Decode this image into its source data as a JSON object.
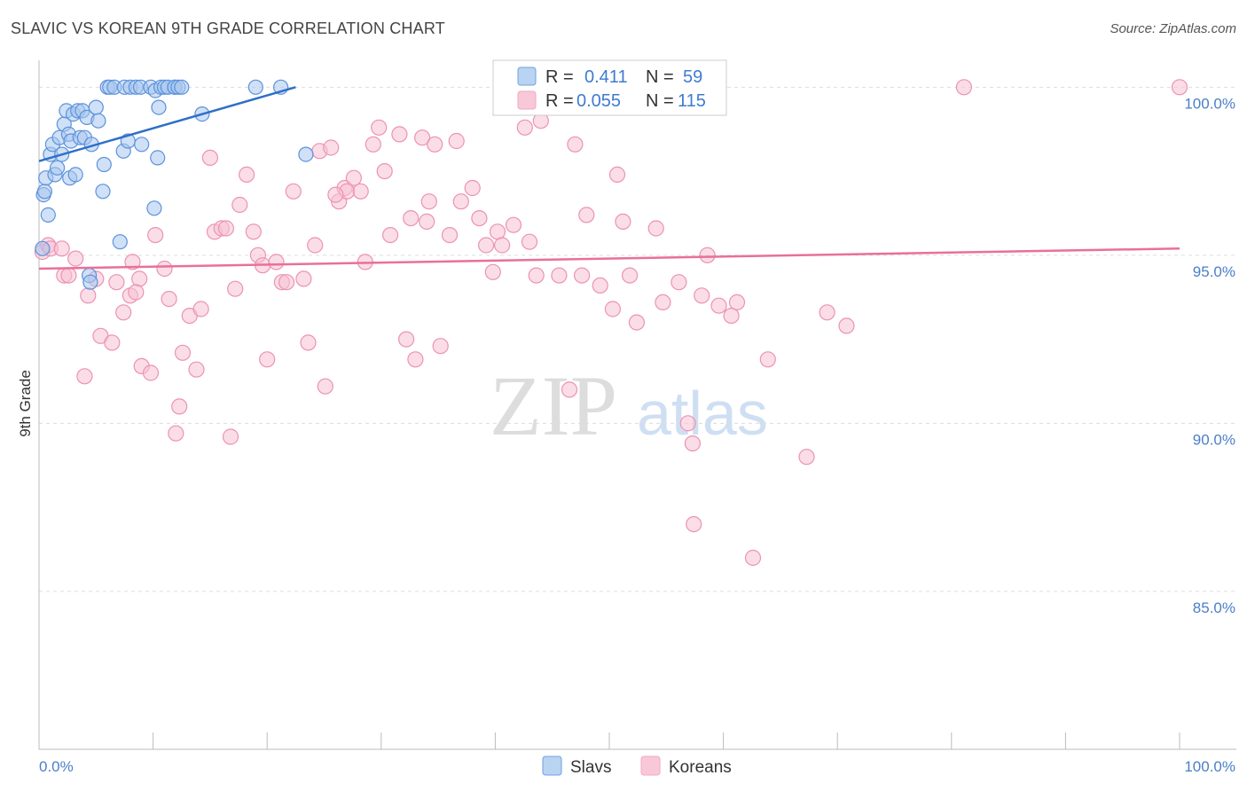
{
  "header": {
    "title": "SLAVIC VS KOREAN 9TH GRADE CORRELATION CHART",
    "source": "Source: ZipAtlas.com"
  },
  "watermark": {
    "zip": "ZIP",
    "atlas": "atlas"
  },
  "colors": {
    "slavs": "#6ea1e0",
    "slavs_line": "#2f6fc8",
    "koreans": "#f2a7bf",
    "koreans_line": "#e8709a",
    "axis_label": "#4a7fc8"
  },
  "legend": {
    "r_label": "R =",
    "n_label": "N =",
    "slavs": {
      "r": "0.411",
      "n": "59"
    },
    "koreans": {
      "r": "0.055",
      "n": "115"
    }
  },
  "bottom_legend": {
    "slavs": "Slavs",
    "koreans": "Koreans"
  },
  "chart_data": {
    "type": "scatter",
    "title": "SLAVIC VS KOREAN 9TH GRADE CORRELATION CHART",
    "xlabel": "",
    "ylabel": "9th Grade",
    "xlim": [
      0,
      100
    ],
    "ylim": [
      80.3,
      100.8
    ],
    "x_tick_labels": {
      "left": "0.0%",
      "right": "100.0%"
    },
    "y_ticks": [
      {
        "value": 100,
        "label": "100.0%"
      },
      {
        "value": 95,
        "label": "95.0%"
      },
      {
        "value": 90,
        "label": "90.0%"
      },
      {
        "value": 85,
        "label": "85.0%"
      }
    ],
    "series": [
      {
        "name": "Slavs",
        "trend": {
          "x0": 0,
          "y0": 97.8,
          "x1": 22.5,
          "y1": 100.0
        },
        "points": [
          [
            0.3,
            95.2
          ],
          [
            0.4,
            96.8
          ],
          [
            0.5,
            96.9
          ],
          [
            0.6,
            97.3
          ],
          [
            0.8,
            96.2
          ],
          [
            1.0,
            98.0
          ],
          [
            1.2,
            98.3
          ],
          [
            1.4,
            97.4
          ],
          [
            1.6,
            97.6
          ],
          [
            1.8,
            98.5
          ],
          [
            2.0,
            98.0
          ],
          [
            2.2,
            98.9
          ],
          [
            2.4,
            99.3
          ],
          [
            2.6,
            98.6
          ],
          [
            2.7,
            97.3
          ],
          [
            2.8,
            98.4
          ],
          [
            3.0,
            99.2
          ],
          [
            3.2,
            97.4
          ],
          [
            3.4,
            99.3
          ],
          [
            3.6,
            98.5
          ],
          [
            3.8,
            99.3
          ],
          [
            4.0,
            98.5
          ],
          [
            4.2,
            99.1
          ],
          [
            4.4,
            94.4
          ],
          [
            4.5,
            94.2
          ],
          [
            4.6,
            98.3
          ],
          [
            5.0,
            99.4
          ],
          [
            5.2,
            99.0
          ],
          [
            5.6,
            96.9
          ],
          [
            5.7,
            97.7
          ],
          [
            6.0,
            100.0
          ],
          [
            6.2,
            100.0
          ],
          [
            6.6,
            100.0
          ],
          [
            7.1,
            95.4
          ],
          [
            7.4,
            98.1
          ],
          [
            7.5,
            100.0
          ],
          [
            7.8,
            98.4
          ],
          [
            8.0,
            100.0
          ],
          [
            8.5,
            100.0
          ],
          [
            8.9,
            100.0
          ],
          [
            9.0,
            98.3
          ],
          [
            9.8,
            100.0
          ],
          [
            10.1,
            96.4
          ],
          [
            10.2,
            99.9
          ],
          [
            10.4,
            97.9
          ],
          [
            10.5,
            99.4
          ],
          [
            10.7,
            100.0
          ],
          [
            11.0,
            100.0
          ],
          [
            11.3,
            100.0
          ],
          [
            11.9,
            100.0
          ],
          [
            11.9,
            100.0
          ],
          [
            12.2,
            100.0
          ],
          [
            12.5,
            100.0
          ],
          [
            14.3,
            99.2
          ],
          [
            19.0,
            100.0
          ],
          [
            21.2,
            100.0
          ],
          [
            23.4,
            98.0
          ],
          [
            43.7,
            100.0
          ],
          [
            48.0,
            100.0
          ]
        ]
      },
      {
        "name": "Koreans",
        "trend": {
          "x0": 0,
          "y0": 94.6,
          "x1": 100,
          "y1": 95.2
        },
        "points": [
          [
            0.3,
            95.1
          ],
          [
            0.8,
            95.3
          ],
          [
            1.0,
            95.2
          ],
          [
            2.0,
            95.2
          ],
          [
            2.2,
            94.4
          ],
          [
            2.6,
            94.4
          ],
          [
            3.2,
            94.9
          ],
          [
            4.0,
            91.4
          ],
          [
            4.3,
            93.8
          ],
          [
            5.0,
            94.3
          ],
          [
            5.4,
            92.6
          ],
          [
            6.4,
            92.4
          ],
          [
            6.8,
            94.2
          ],
          [
            7.4,
            93.3
          ],
          [
            8.0,
            93.8
          ],
          [
            8.2,
            94.8
          ],
          [
            8.8,
            94.3
          ],
          [
            9.0,
            91.7
          ],
          [
            9.8,
            91.5
          ],
          [
            10.2,
            95.6
          ],
          [
            11.0,
            94.6
          ],
          [
            11.4,
            93.7
          ],
          [
            12.0,
            89.7
          ],
          [
            12.3,
            90.5
          ],
          [
            12.6,
            92.1
          ],
          [
            13.2,
            93.2
          ],
          [
            13.8,
            91.6
          ],
          [
            14.2,
            93.4
          ],
          [
            15.0,
            97.9
          ],
          [
            15.4,
            95.7
          ],
          [
            16.0,
            95.8
          ],
          [
            16.4,
            95.8
          ],
          [
            16.8,
            89.6
          ],
          [
            17.2,
            94.0
          ],
          [
            17.6,
            96.5
          ],
          [
            18.2,
            97.4
          ],
          [
            18.8,
            95.7
          ],
          [
            19.2,
            95.0
          ],
          [
            19.6,
            94.7
          ],
          [
            20.0,
            91.9
          ],
          [
            20.8,
            94.8
          ],
          [
            21.3,
            94.2
          ],
          [
            21.7,
            94.2
          ],
          [
            22.3,
            96.9
          ],
          [
            23.2,
            94.3
          ],
          [
            23.6,
            92.4
          ],
          [
            24.2,
            95.3
          ],
          [
            24.6,
            98.1
          ],
          [
            25.1,
            91.1
          ],
          [
            25.6,
            98.2
          ],
          [
            26.3,
            96.6
          ],
          [
            26.8,
            97.0
          ],
          [
            27.0,
            96.9
          ],
          [
            27.6,
            97.3
          ],
          [
            28.2,
            96.9
          ],
          [
            28.6,
            94.8
          ],
          [
            29.3,
            98.3
          ],
          [
            29.8,
            98.8
          ],
          [
            30.3,
            97.5
          ],
          [
            30.8,
            95.6
          ],
          [
            31.6,
            98.6
          ],
          [
            32.2,
            92.5
          ],
          [
            32.6,
            96.1
          ],
          [
            33.0,
            91.9
          ],
          [
            33.6,
            98.5
          ],
          [
            34.2,
            96.6
          ],
          [
            34.7,
            98.3
          ],
          [
            35.2,
            92.3
          ],
          [
            36.0,
            95.6
          ],
          [
            36.6,
            98.4
          ],
          [
            37.0,
            96.6
          ],
          [
            38.0,
            97.0
          ],
          [
            38.6,
            96.1
          ],
          [
            39.2,
            95.3
          ],
          [
            39.8,
            94.5
          ],
          [
            40.2,
            95.7
          ],
          [
            40.6,
            95.3
          ],
          [
            41.6,
            95.9
          ],
          [
            42.6,
            98.8
          ],
          [
            43.0,
            95.4
          ],
          [
            43.6,
            94.4
          ],
          [
            44.0,
            99.0
          ],
          [
            45.6,
            94.4
          ],
          [
            46.5,
            91.0
          ],
          [
            47.0,
            98.3
          ],
          [
            47.6,
            94.4
          ],
          [
            48.0,
            96.2
          ],
          [
            49.2,
            94.1
          ],
          [
            50.3,
            93.4
          ],
          [
            50.7,
            97.4
          ],
          [
            51.2,
            96.0
          ],
          [
            51.8,
            94.4
          ],
          [
            52.4,
            93.0
          ],
          [
            54.1,
            95.8
          ],
          [
            54.7,
            93.6
          ],
          [
            56.1,
            94.2
          ],
          [
            56.9,
            90.0
          ],
          [
            57.3,
            89.4
          ],
          [
            57.4,
            87.0
          ],
          [
            58.1,
            93.8
          ],
          [
            58.6,
            95.0
          ],
          [
            59.6,
            93.5
          ],
          [
            60.7,
            93.2
          ],
          [
            61.2,
            93.6
          ],
          [
            62.6,
            86.0
          ],
          [
            63.9,
            91.9
          ],
          [
            67.3,
            89.0
          ],
          [
            69.1,
            93.3
          ],
          [
            70.8,
            92.9
          ],
          [
            81.1,
            100.0
          ],
          [
            100.0,
            100.0
          ],
          [
            8.5,
            93.9
          ],
          [
            26.0,
            96.8
          ],
          [
            34.0,
            96.0
          ],
          [
            44.7,
            99.9
          ]
        ]
      }
    ]
  }
}
